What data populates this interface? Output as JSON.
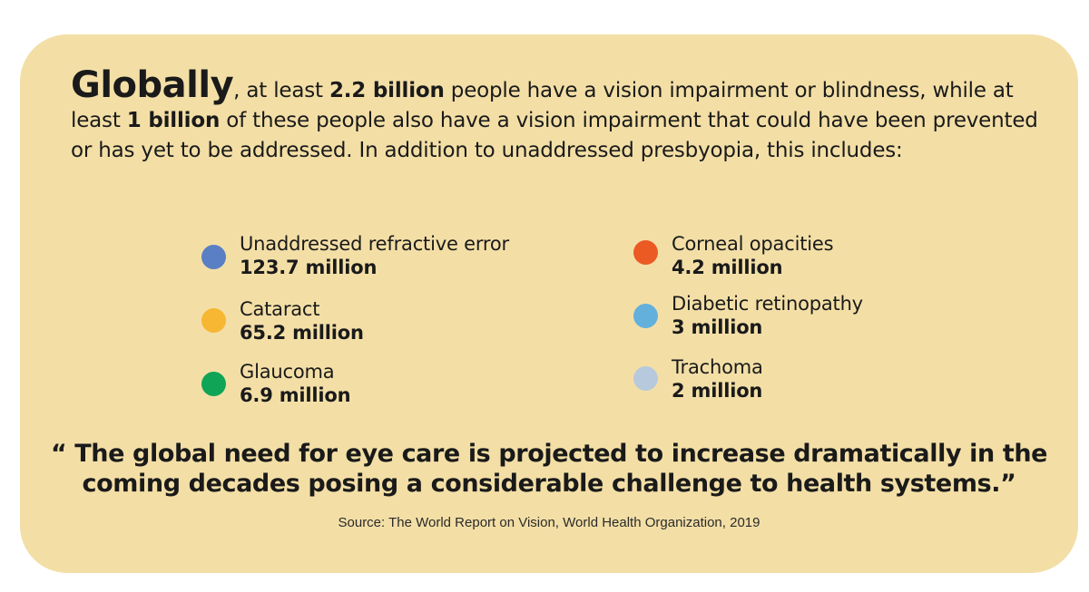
{
  "intro": {
    "lead": "Globally",
    "t1": ", at least ",
    "b1": "2.2 billion",
    "t2": " people have a vision impairment or blindness, while at least ",
    "b2": "1 billion",
    "t3": " of these people also have a vision impairment that could have been prevented or has yet to be addressed. In addition to unaddressed presbyopia, this includes:"
  },
  "causes": [
    {
      "name": "Unaddressed refractive error",
      "value": "123.7 million",
      "color": "#5a7fc4"
    },
    {
      "name": "Cataract",
      "value": "65.2 million",
      "color": "#f7b733"
    },
    {
      "name": "Glaucoma",
      "value": "6.9 million",
      "color": "#10a556"
    },
    {
      "name": "Corneal opacities",
      "value": "4.2 million",
      "color": "#ec5a24"
    },
    {
      "name": "Diabetic retinopathy",
      "value": "3 million",
      "color": "#64b0dc"
    },
    {
      "name": "Trachoma",
      "value": "2 million",
      "color": "#b7c9dc"
    }
  ],
  "quote": "“ The global need for eye care is projected to increase dramatically in the coming decades posing a considerable challenge to health systems.”",
  "source": "Source: The World Report on Vision, World Health Organization, 2019"
}
